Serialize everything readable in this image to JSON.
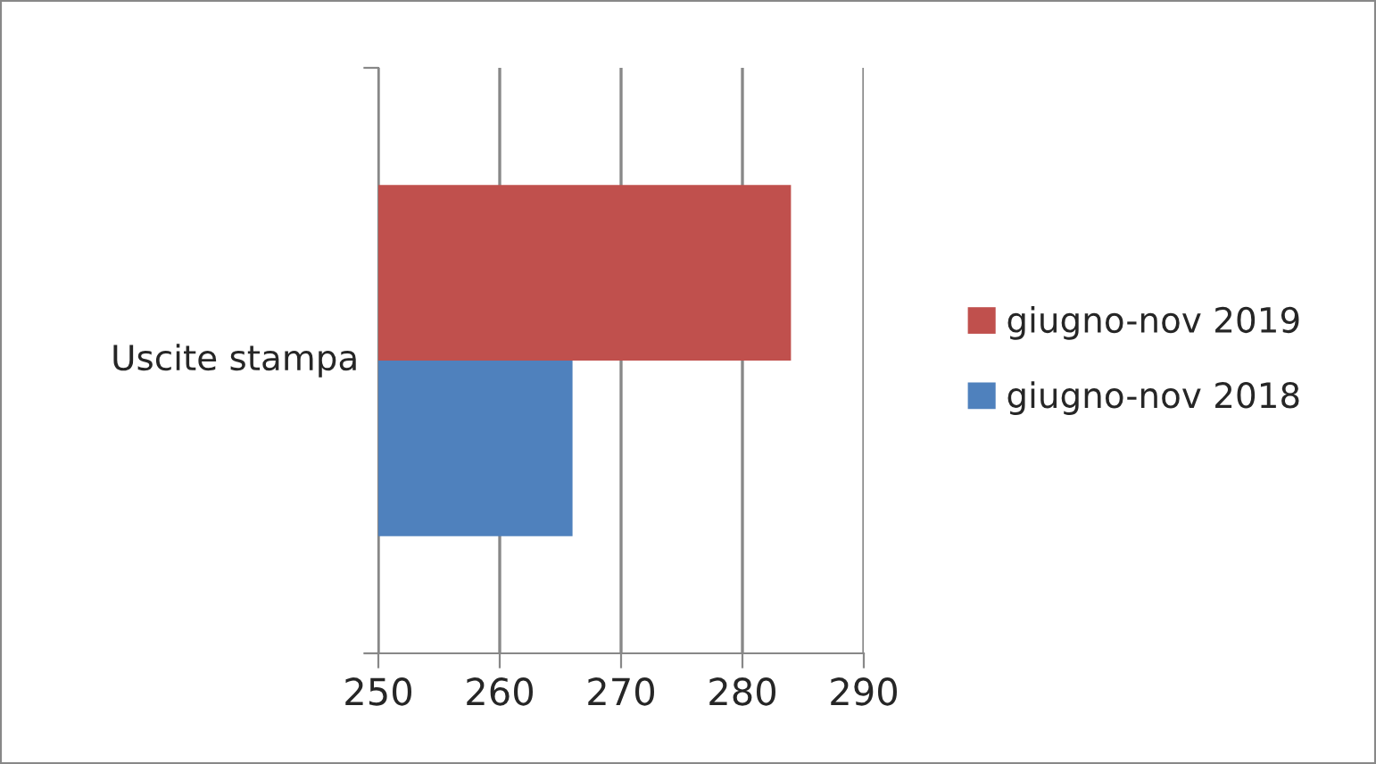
{
  "chart_data": {
    "type": "bar",
    "orientation": "horizontal",
    "categories": [
      "Uscite stampa"
    ],
    "series": [
      {
        "name": "giugno-nov 2019",
        "color": "#c0504d",
        "values": [
          284
        ]
      },
      {
        "name": "giugno-nov 2018",
        "color": "#4f81bd",
        "values": [
          266
        ]
      }
    ],
    "xlim": [
      250,
      290
    ],
    "xticks": [
      250,
      260,
      270,
      280,
      290
    ],
    "grid": "x",
    "legend": "right"
  }
}
